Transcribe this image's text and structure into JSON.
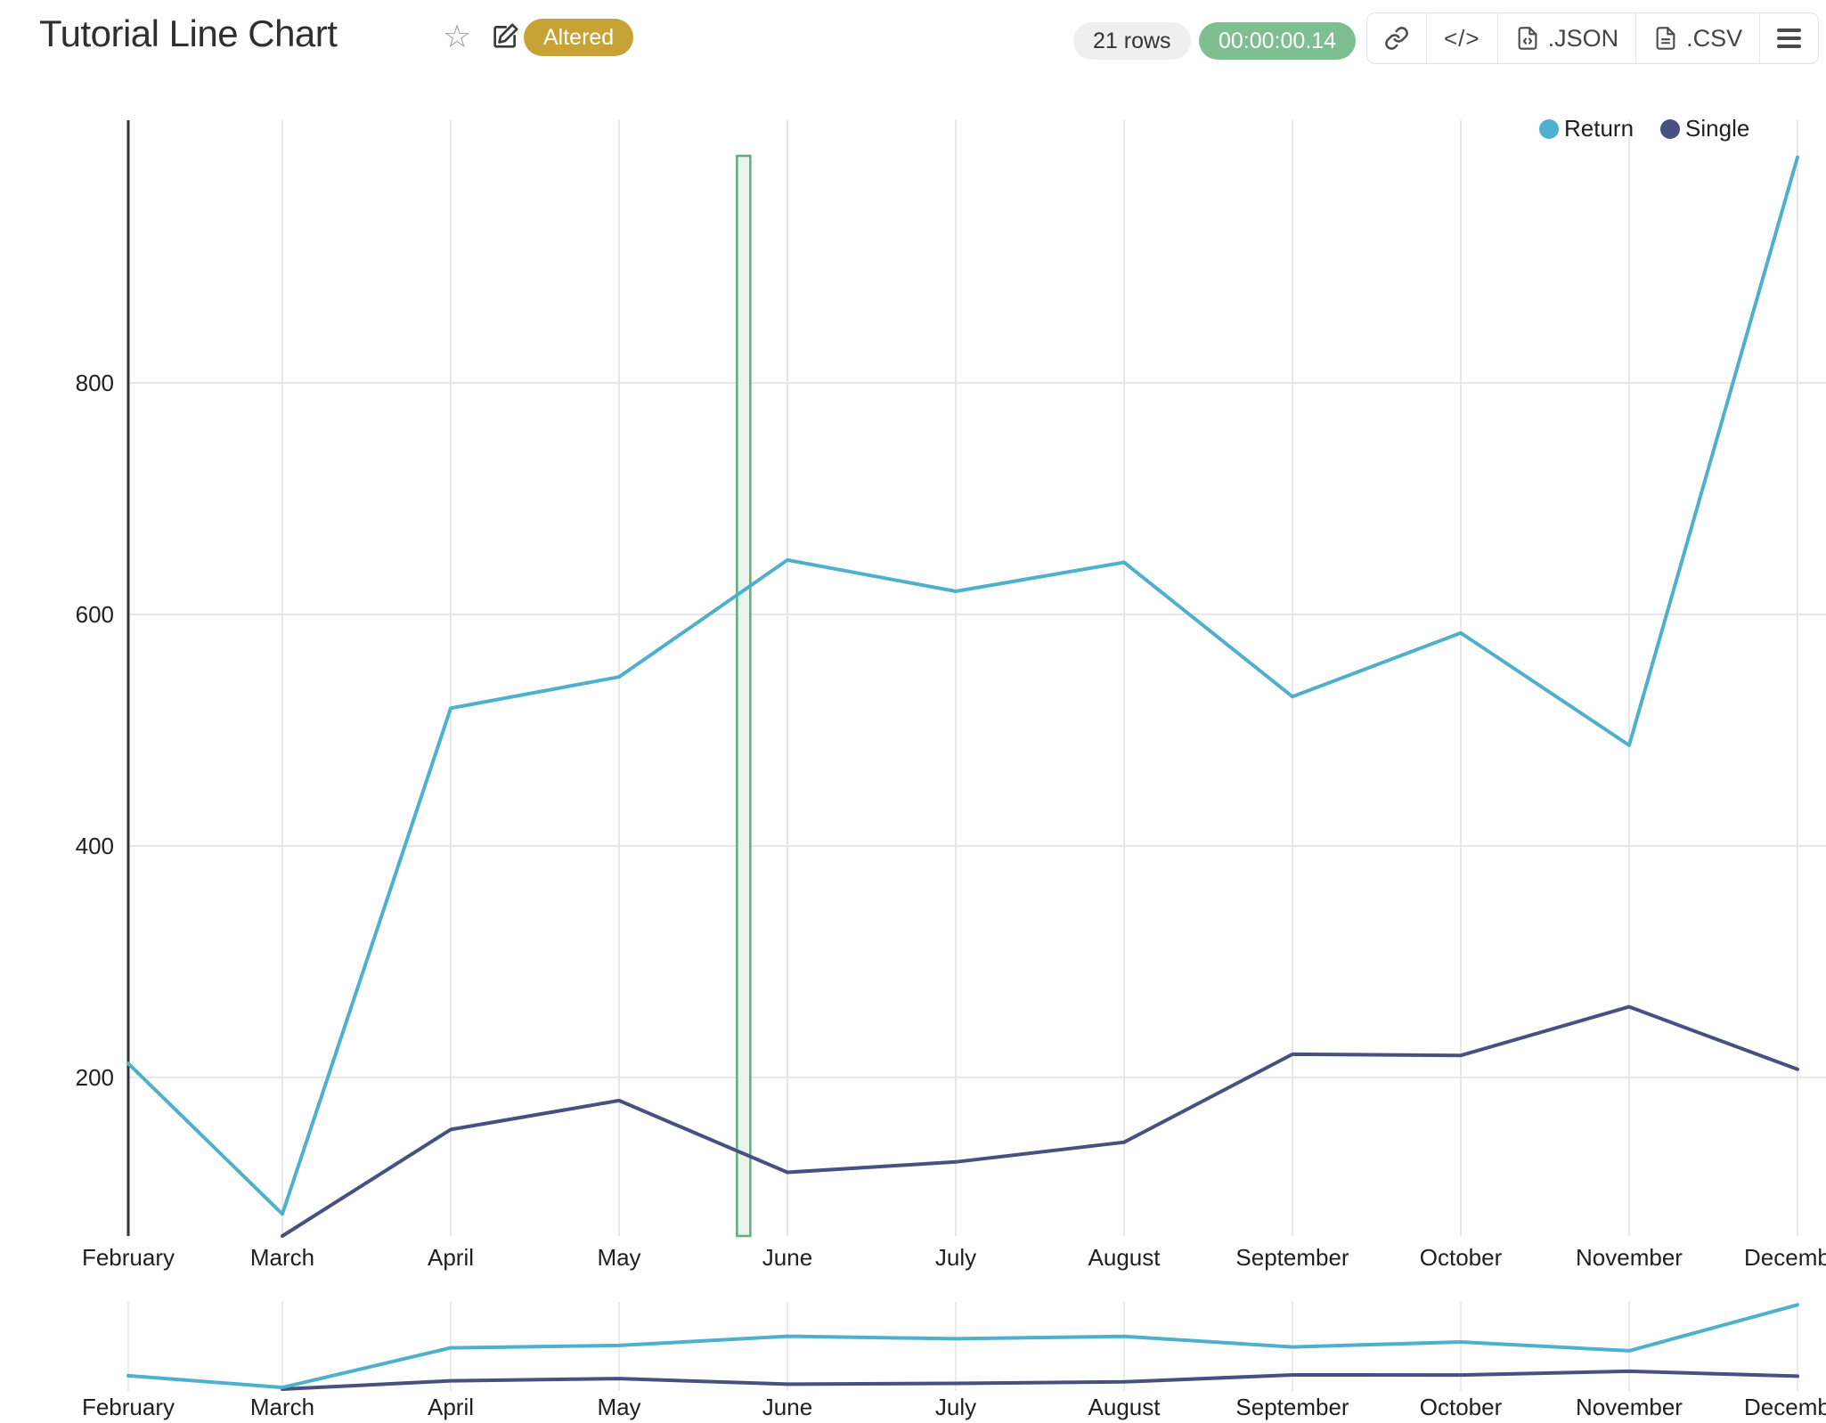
{
  "header": {
    "title": "Tutorial Line Chart",
    "altered_badge": "Altered",
    "rows_badge": "21 rows",
    "timer_badge": "00:00:00.14",
    "export_json_label": ".JSON",
    "export_csv_label": ".CSV",
    "code_glyph": "</>"
  },
  "colors": {
    "accent_gold": "#c7a336",
    "accent_green": "#7fbe90",
    "pill_gray": "#efefef",
    "return_line": "#4fb0cd",
    "single_line": "#475080",
    "gridline": "#e7e7e7",
    "axis_line": "#333333",
    "band_border": "#5fae75",
    "band_fill": "#e9f4ec"
  },
  "legend": {
    "items": [
      {
        "label": "Return",
        "color": "#4fb0cd"
      },
      {
        "label": "Single",
        "color": "#475080"
      }
    ]
  },
  "chart_data": {
    "type": "line",
    "title": "Tutorial Line Chart",
    "xlabel": "",
    "ylabel": "",
    "categories": [
      "February",
      "March",
      "April",
      "May",
      "June",
      "July",
      "August",
      "September",
      "October",
      "November",
      "December"
    ],
    "series": [
      {
        "name": "Return",
        "color": "#4fb0cd",
        "values": [
          212,
          82,
          519,
          546,
          647,
          620,
          645,
          529,
          584,
          487,
          995
        ]
      },
      {
        "name": "Single",
        "color": "#475080",
        "values": [
          null,
          63,
          155,
          180,
          118,
          127,
          144,
          220,
          219,
          261,
          207
        ]
      }
    ],
    "ylim": [
      63,
      1027
    ],
    "yticks": [
      200,
      400,
      600,
      800
    ],
    "grid": true,
    "legend_position": "top-right",
    "annotation_band": {
      "after_index": 3,
      "fraction": 0.74,
      "width": 15
    },
    "mini_chart": {
      "present": true,
      "categories_repeated": true
    }
  }
}
